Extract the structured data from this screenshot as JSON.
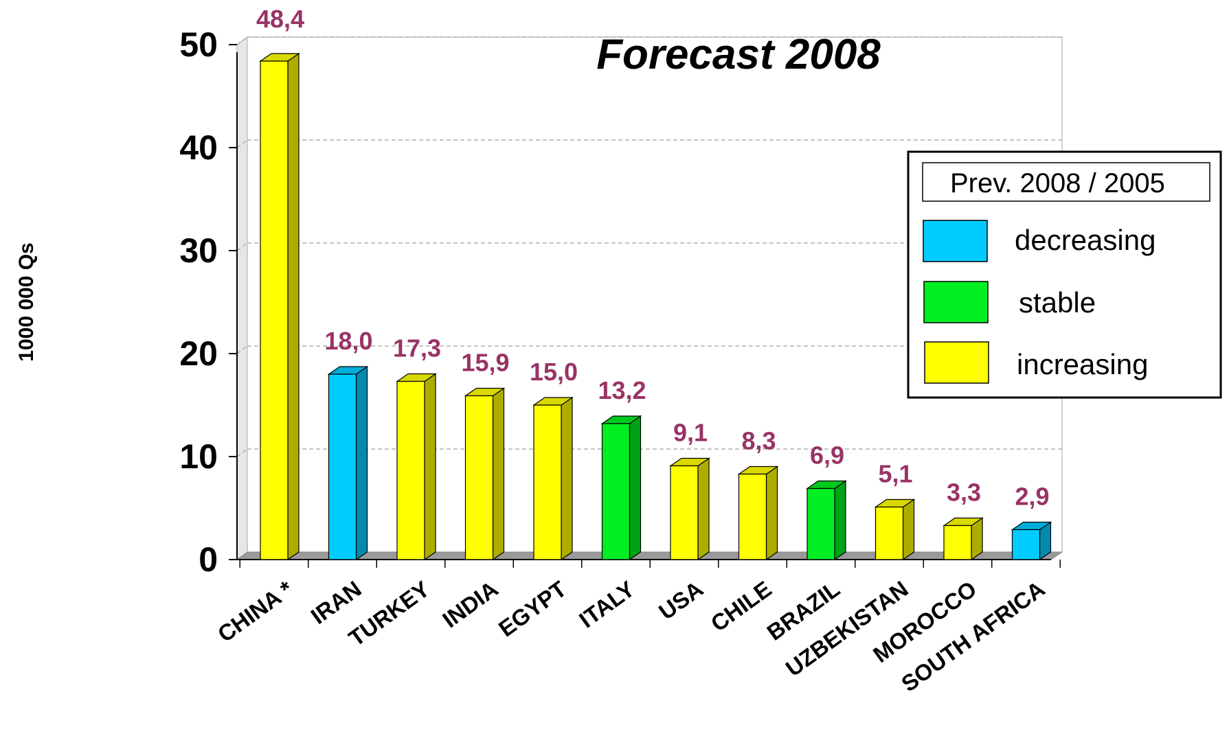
{
  "chart_data": {
    "type": "bar",
    "title": "Forecast 2008",
    "ylabel": "1000 000 Qs",
    "xlabel": "",
    "ylim": [
      0,
      50
    ],
    "yticks": [
      0,
      10,
      20,
      30,
      40,
      50
    ],
    "ytick_labels": [
      "0",
      "10",
      "20",
      "30",
      "40",
      "50"
    ],
    "grid": true,
    "categories": [
      "CHINA *",
      "IRAN",
      "TURKEY",
      "INDIA",
      "EGYPT",
      "ITALY",
      "USA",
      "CHILE",
      "BRAZIL",
      "UZBEKISTAN",
      "MOROCCO",
      "SOUTH AFRICA"
    ],
    "values": [
      48.4,
      18.0,
      17.3,
      15.9,
      15.0,
      13.2,
      9.1,
      8.3,
      6.9,
      5.1,
      3.3,
      2.9
    ],
    "value_labels": [
      "48,4",
      "18,0",
      "17,3",
      "15,9",
      "15,0",
      "13,2",
      "9,1",
      "8,3",
      "6,9",
      "5,1",
      "3,3",
      "2,9"
    ],
    "trend": [
      "increasing",
      "decreasing",
      "increasing",
      "increasing",
      "increasing",
      "stable",
      "increasing",
      "increasing",
      "stable",
      "increasing",
      "increasing",
      "decreasing"
    ],
    "legend": {
      "title": "Prev. 2008 / 2005",
      "placement": "right",
      "items": [
        {
          "key": "decreasing",
          "label": "decreasing",
          "color": "#00ccff"
        },
        {
          "key": "stable",
          "label": "stable",
          "color": "#00ee22"
        },
        {
          "key": "increasing",
          "label": "increasing",
          "color": "#ffff00"
        }
      ]
    },
    "colors": {
      "value_label": "#993366",
      "grid": "#b0b0b0",
      "floor": "#9a9a9a",
      "wall": "#c0c0c0"
    }
  }
}
